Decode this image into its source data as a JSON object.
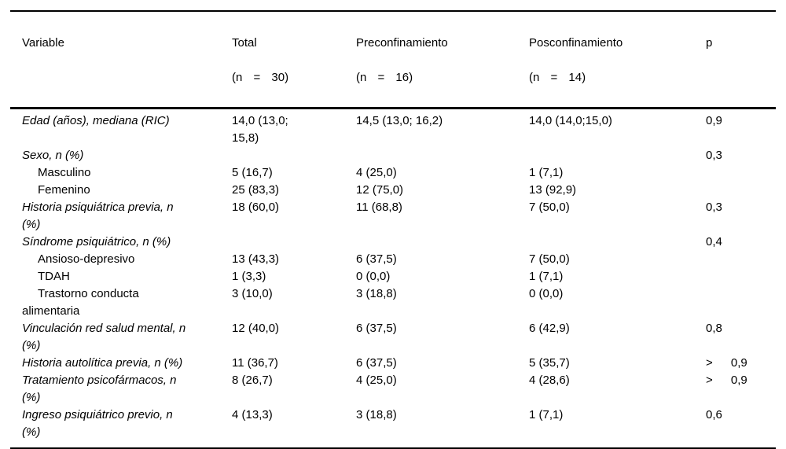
{
  "table": {
    "header": [
      {
        "label": "Variable",
        "n": ""
      },
      {
        "label": "Total",
        "n": "(n = 30)"
      },
      {
        "label": "Preconfinamiento",
        "n": "(n = 16)"
      },
      {
        "label": "Posconfinamiento",
        "n": "(n = 14)"
      },
      {
        "label": "p",
        "n": ""
      }
    ],
    "rows": [
      {
        "name": "Edad (años), mediana (RIC)",
        "style": "var",
        "total": "14,0 (13,0;\n15,8)",
        "pre": "14,5 (13,0; 16,2)",
        "post": "14,0 (14,0;15,0)",
        "p": "0,9"
      },
      {
        "name": "Sexo, n (%)",
        "style": "var",
        "total": "",
        "pre": "",
        "post": "",
        "p": "0,3"
      },
      {
        "name": "Masculino",
        "style": "sub",
        "total": "5 (16,7)",
        "pre": "4 (25,0)",
        "post": "1 (7,1)",
        "p": ""
      },
      {
        "name": "Femenino",
        "style": "sub",
        "total": "25 (83,3)",
        "pre": "12 (75,0)",
        "post": "13 (92,9)",
        "p": ""
      },
      {
        "name": "Historia psiquiátrica previa, n\n(%)",
        "style": "var",
        "total": "18 (60,0)",
        "pre": "11 (68,8)",
        "post": "7 (50,0)",
        "p": "0,3"
      },
      {
        "name": "Síndrome psiquiátrico, n (%)",
        "style": "var",
        "total": "",
        "pre": "",
        "post": "",
        "p": "0,4"
      },
      {
        "name": "Ansioso-depresivo",
        "style": "sub",
        "total": "13 (43,3)",
        "pre": "6 (37,5)",
        "post": "7 (50,0)",
        "p": ""
      },
      {
        "name": "TDAH",
        "style": "sub",
        "total": "1 (3,3)",
        "pre": "0 (0,0)",
        "post": "1 (7,1)",
        "p": ""
      },
      {
        "name": "Trastorno conducta\nalimentaria",
        "style": "sub",
        "total": "3 (10,0)",
        "pre": "3 (18,8)",
        "post": "0 (0,0)",
        "p": ""
      },
      {
        "name": "Vinculación red salud mental, n\n(%)",
        "style": "var",
        "total": "12 (40,0)",
        "pre": "6 (37,5)",
        "post": "6 (42,9)",
        "p": "0,8"
      },
      {
        "name": "Historia autolítica previa, n (%)",
        "style": "var",
        "total": "11 (36,7)",
        "pre": "6 (37,5)",
        "post": "5 (35,7)",
        "p": "> 0,9"
      },
      {
        "name": "Tratamiento psicofármacos, n\n(%)",
        "style": "var",
        "total": "8 (26,7)",
        "pre": "4 (25,0)",
        "post": "4 (28,6)",
        "p": "> 0,9"
      },
      {
        "name": "Ingreso psiquiátrico previo, n\n(%)",
        "style": "var",
        "total": "4 (13,3)",
        "pre": "3 (18,8)",
        "post": "1 (7,1)",
        "p": "0,6"
      }
    ],
    "text_color": "#000000",
    "background_color": "#ffffff"
  }
}
